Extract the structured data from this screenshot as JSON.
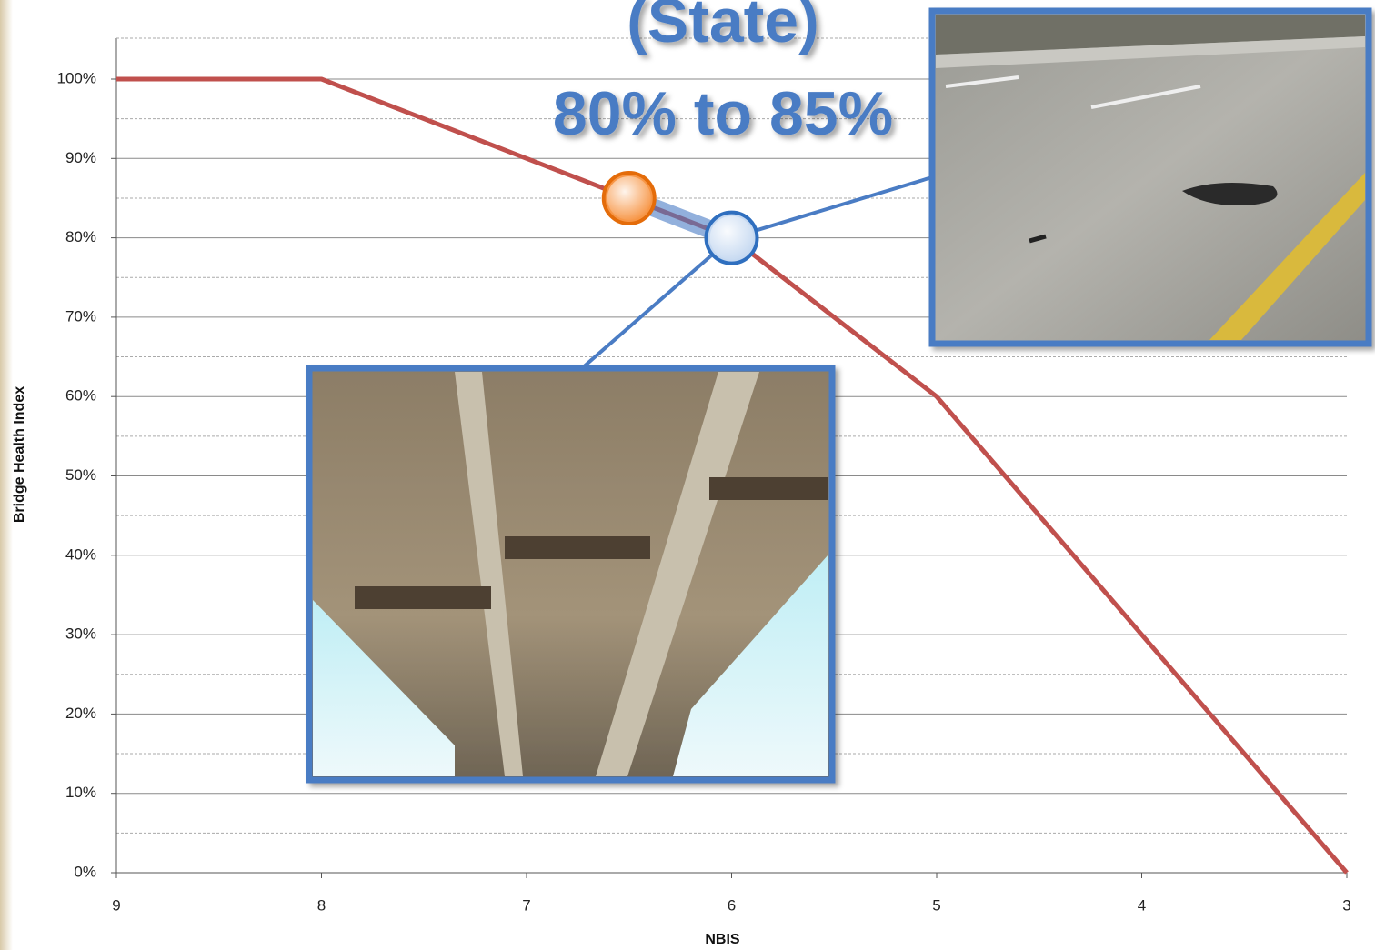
{
  "chart_data": {
    "type": "line",
    "x_label": "NBIS",
    "y_label": "Bridge Health Index",
    "annotations": [
      "(State)",
      "80% to 85%"
    ],
    "x": [
      9,
      8,
      7,
      6,
      5,
      4,
      3
    ],
    "series": [
      {
        "name": "Bridge Health Index",
        "color": "#c0504d",
        "values": [
          100,
          100,
          90,
          80,
          60,
          30,
          0
        ]
      }
    ],
    "highlights": [
      {
        "x": 6.5,
        "y": 85,
        "color": "#f79646"
      },
      {
        "x": 6,
        "y": 80,
        "color": "#c6d9f1"
      }
    ],
    "xlim": [
      9,
      3
    ],
    "xticks": [
      9,
      8,
      7,
      6,
      5,
      4,
      3
    ],
    "ylim": [
      0,
      100
    ],
    "yticks": [
      {
        "value": 0,
        "label": "0%"
      },
      {
        "value": 10,
        "label": "10%"
      },
      {
        "value": 20,
        "label": "20%"
      },
      {
        "value": 30,
        "label": "30%"
      },
      {
        "value": 40,
        "label": "40%"
      },
      {
        "value": 50,
        "label": "50%"
      },
      {
        "value": 60,
        "label": "60%"
      },
      {
        "value": 70,
        "label": "70%"
      },
      {
        "value": 80,
        "label": "80%"
      },
      {
        "value": 90,
        "label": "90%"
      },
      {
        "value": 100,
        "label": "100%"
      }
    ],
    "grid": true,
    "minor_grid": true
  }
}
